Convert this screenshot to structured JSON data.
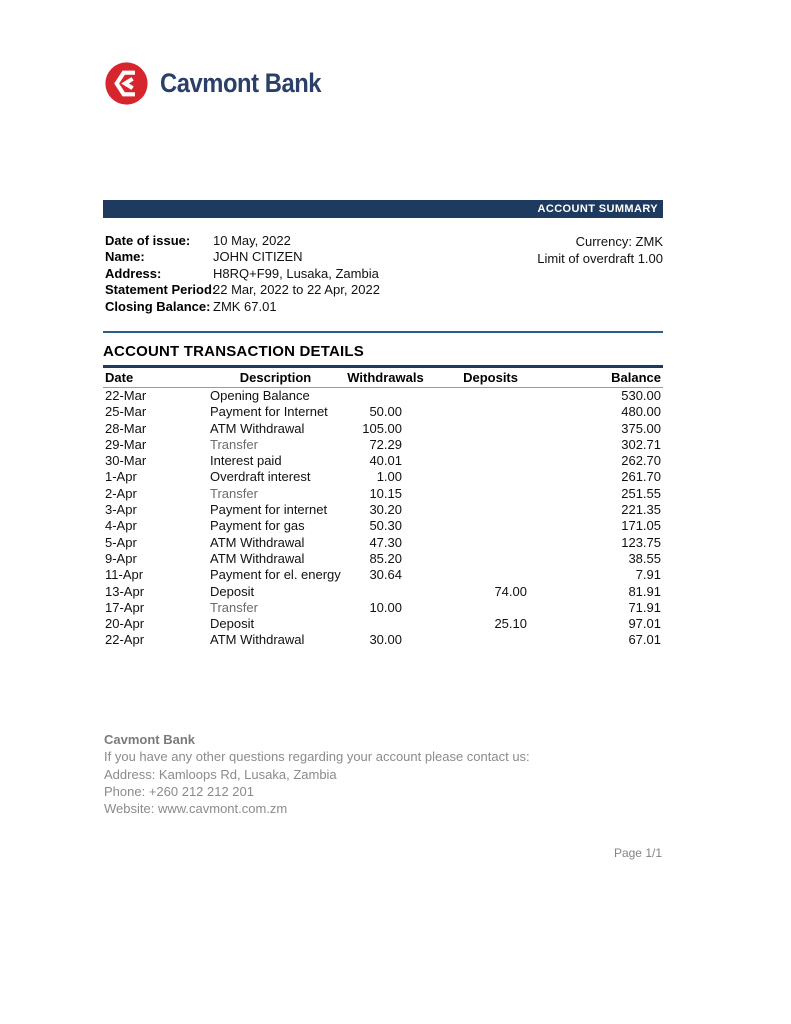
{
  "brand": {
    "name": "Cavmont Bank"
  },
  "summary": {
    "bar_label": "ACCOUNT SUMMARY",
    "fields": [
      {
        "label": "Date of issue:",
        "value": "10 May, 2022"
      },
      {
        "label": "Name:",
        "value": "JOHN CITIZEN"
      },
      {
        "label": "Address:",
        "value": "H8RQ+F99, Lusaka, Zambia"
      },
      {
        "label": "Statement Period:",
        "value": "22 Mar, 2022 to 22 Apr, 2022"
      },
      {
        "label": "Closing Balance:",
        "value": "ZMK 67.01"
      }
    ],
    "currency_line": "Currency: ZMK",
    "overdraft_line": "Limit of overdraft 1.00"
  },
  "transactions": {
    "title": "ACCOUNT TRANSACTION DETAILS",
    "columns": [
      "Date",
      "Description",
      "Withdrawals",
      "Deposits",
      "Balance"
    ],
    "rows": [
      {
        "date": "22-Mar",
        "description": "Opening Balance",
        "withdrawal": "",
        "deposit": "",
        "balance": "530.00"
      },
      {
        "date": "25-Mar",
        "description": "Payment for Internet",
        "withdrawal": "50.00",
        "deposit": "",
        "balance": "480.00"
      },
      {
        "date": "28-Mar",
        "description": "ATM Withdrawal",
        "withdrawal": "105.00",
        "deposit": "",
        "balance": "375.00"
      },
      {
        "date": "29-Mar",
        "description": "Transfer",
        "muted": true,
        "withdrawal": "72.29",
        "deposit": "",
        "balance": "302.71"
      },
      {
        "date": "30-Mar",
        "description": "Interest paid",
        "withdrawal": "40.01",
        "deposit": "",
        "balance": "262.70"
      },
      {
        "date": "1-Apr",
        "description": "Overdraft interest",
        "withdrawal": "1.00",
        "deposit": "",
        "balance": "261.70"
      },
      {
        "date": "2-Apr",
        "description": "Transfer",
        "muted": true,
        "withdrawal": "10.15",
        "deposit": "",
        "balance": "251.55"
      },
      {
        "date": "3-Apr",
        "description": "Payment for internet",
        "withdrawal": "30.20",
        "deposit": "",
        "balance": "221.35"
      },
      {
        "date": "4-Apr",
        "description": "Payment for gas",
        "withdrawal": "50.30",
        "deposit": "",
        "balance": "171.05"
      },
      {
        "date": "5-Apr",
        "description": "ATM Withdrawal",
        "withdrawal": "47.30",
        "deposit": "",
        "balance": "123.75"
      },
      {
        "date": "9-Apr",
        "description": "ATM Withdrawal",
        "withdrawal": "85.20",
        "deposit": "",
        "balance": "38.55"
      },
      {
        "date": "11-Apr",
        "description": "Payment for el. energy",
        "withdrawal": "30.64",
        "deposit": "",
        "balance": "7.91"
      },
      {
        "date": "13-Apr",
        "description": "Deposit",
        "withdrawal": "",
        "deposit": "74.00",
        "balance": "81.91"
      },
      {
        "date": "17-Apr",
        "description": "Transfer",
        "muted": true,
        "withdrawal": "10.00",
        "deposit": "",
        "balance": "71.91"
      },
      {
        "date": "20-Apr",
        "description": "Deposit",
        "withdrawal": "",
        "deposit": "25.10",
        "balance": "97.01"
      },
      {
        "date": "22-Apr",
        "description": "ATM Withdrawal",
        "withdrawal": "30.00",
        "deposit": "",
        "balance": "67.01"
      }
    ]
  },
  "footer": {
    "bank_name": "Cavmont Bank",
    "lines": [
      "If you have any other questions regarding your account please contact us:",
      "Address: Kamloops Rd, Lusaka, Zambia",
      "Phone: +260 212 212 201",
      "Website: www.cavmont.com.zm"
    ],
    "page_label": "Page 1/1"
  },
  "colors": {
    "navy_bar": "#1F3A5F",
    "divider_blue": "#2C5E8C",
    "logo_red": "#D6252C",
    "logo_text": "#2A4069",
    "footer_gray": "#8B8B8B"
  }
}
